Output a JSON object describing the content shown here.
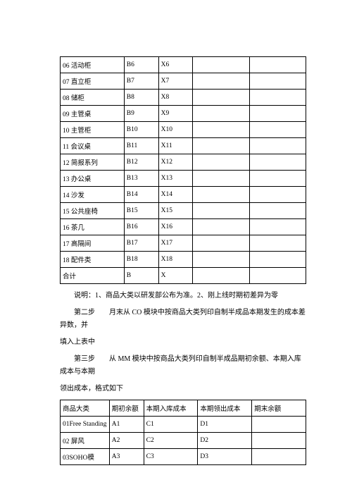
{
  "table1": {
    "rows": [
      [
        "06 活动柜",
        "B6",
        "X6",
        "",
        ""
      ],
      [
        "07 直立柜",
        "B7",
        "X7",
        "",
        ""
      ],
      [
        "08 储柜",
        "B8",
        "X8",
        "",
        ""
      ],
      [
        "09 主管桌",
        "B9",
        "X9",
        "",
        ""
      ],
      [
        "10 主管柜",
        "B10",
        "X10",
        "",
        ""
      ],
      [
        "11 会议桌",
        "B11",
        "X11",
        "",
        ""
      ],
      [
        "12 简报系列",
        "B12",
        "X12",
        "",
        ""
      ],
      [
        "13 办公桌",
        "B13",
        "X13",
        "",
        ""
      ],
      [
        "14 沙发",
        "B14",
        "X14",
        "",
        ""
      ],
      [
        "15 公共座椅",
        "B15",
        "X15",
        "",
        ""
      ],
      [
        "16 茶几",
        "B16",
        "X16",
        "",
        ""
      ],
      [
        "17 高隔间",
        "B17",
        "X17",
        "",
        ""
      ],
      [
        "18 配件类",
        "B18",
        "X18",
        "",
        ""
      ],
      [
        "合计",
        "B",
        "X",
        "",
        ""
      ]
    ]
  },
  "note_text": "说明：1、商品大类以研发部公布为准。2、刚上线时期初差异为零",
  "step2": {
    "label": "第二步",
    "line1": "月末从 CO 模块中按商品大类列印自制半成品本期发生的成本差异数，并",
    "line2": "填入上表中"
  },
  "step3": {
    "label": "第三步",
    "line1": "从 MM 模块中按商品大类列印自制半成品期初余额、本期入库成本与本期",
    "line2": "领出成本，格式如下"
  },
  "table2": {
    "headers": [
      "商品大类",
      "期初余额",
      "本期入库成本",
      "本期领出成本",
      "期末余额"
    ],
    "rows": [
      [
        "01Free Standing",
        "A1",
        "C1",
        "D1",
        ""
      ],
      [
        "02 屏风",
        "A2",
        "C2",
        "D2",
        ""
      ],
      [
        "03SOHO模",
        "A3",
        "C3",
        "D3",
        ""
      ]
    ]
  }
}
